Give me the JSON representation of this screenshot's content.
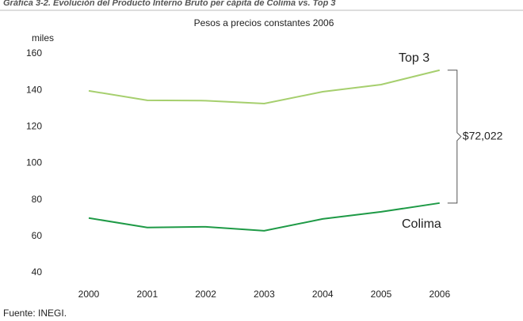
{
  "chart_data": {
    "type": "line",
    "title": "Gráfica 3-2. Evolución del Producto Interno Bruto per cápita de Colima vs. Top 3",
    "subtitle": "Pesos a precios constantes 2006",
    "y_label": "miles",
    "categories": [
      "2000",
      "2001",
      "2002",
      "2003",
      "2004",
      "2005",
      "2006"
    ],
    "series": [
      {
        "name": "Top 3",
        "color": "#a6cf6e",
        "values": [
          139.7,
          134.5,
          134.3,
          132.7,
          139.2,
          143.1,
          151.0
        ]
      },
      {
        "name": "Colima",
        "color": "#1e9a46",
        "values": [
          70.0,
          64.8,
          65.2,
          63.0,
          69.5,
          73.4,
          78.2
        ]
      }
    ],
    "ylim": [
      40,
      160
    ],
    "yticks": [
      40,
      60,
      80,
      100,
      120,
      140,
      160
    ],
    "annotation": "$72,022",
    "source": "Fuente: INEGI."
  }
}
